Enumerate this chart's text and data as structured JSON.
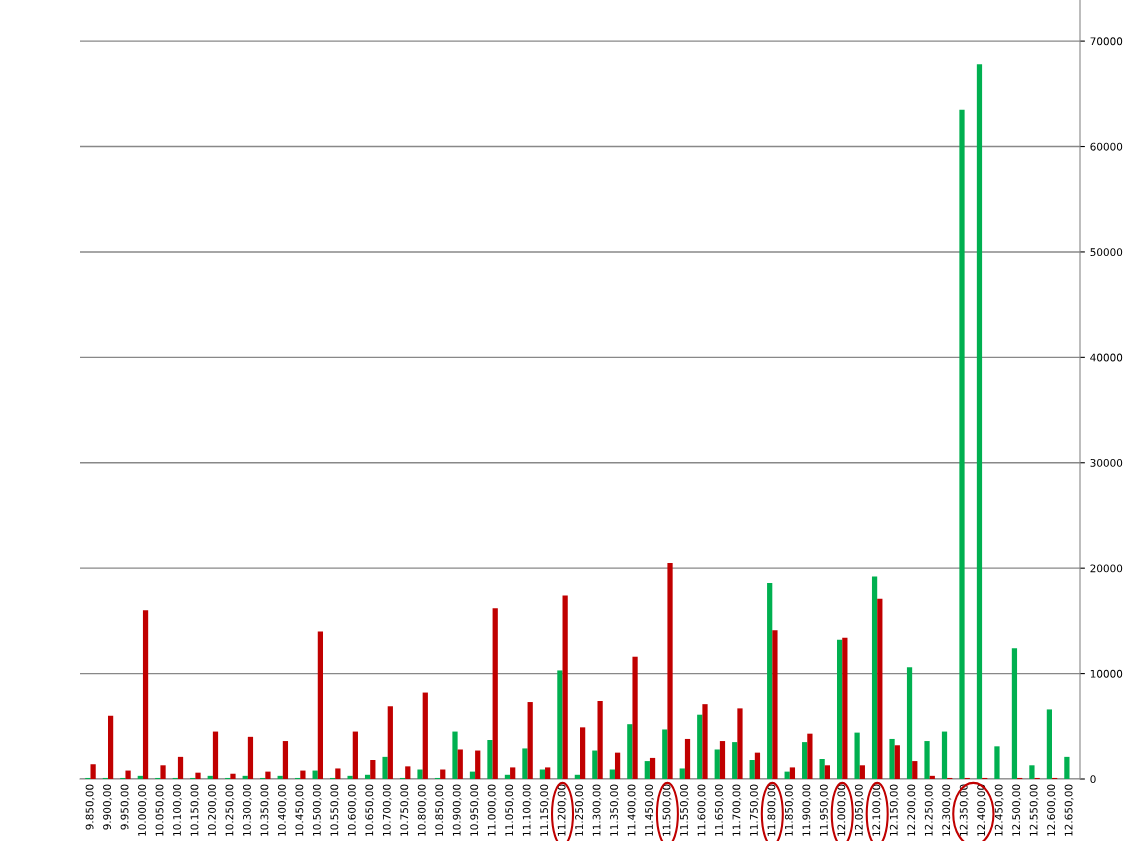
{
  "chart_data": {
    "type": "bar",
    "categories": [
      "9.850,00",
      "9.900,00",
      "9.950,00",
      "10.000,00",
      "10.050,00",
      "10.100,00",
      "10.150,00",
      "10.200,00",
      "10.250,00",
      "10.300,00",
      "10.350,00",
      "10.400,00",
      "10.450,00",
      "10.500,00",
      "10.550,00",
      "10.600,00",
      "10.650,00",
      "10.700,00",
      "10.750,00",
      "10.800,00",
      "10.850,00",
      "10.900,00",
      "10.950,00",
      "11.000,00",
      "11.050,00",
      "11.100,00",
      "11.150,00",
      "11.200,00",
      "11.250,00",
      "11.300,00",
      "11.350,00",
      "11.400,00",
      "11.450,00",
      "11.500,00",
      "11.550,00",
      "11.600,00",
      "11.650,00",
      "11.700,00",
      "11.750,00",
      "11.800,00",
      "11.850,00",
      "11.900,00",
      "11.950,00",
      "12.000,00",
      "12.050,00",
      "12.100,00",
      "12.150,00",
      "12.200,00",
      "12.250,00",
      "12.300,00",
      "12.350,00",
      "12.400,00",
      "12.450,00",
      "12.500,00",
      "12.550,00",
      "12.600,00",
      "12.650,00"
    ],
    "series": [
      {
        "color": "#00b050",
        "values": [
          100,
          100,
          100,
          300,
          100,
          100,
          100,
          300,
          100,
          300,
          100,
          300,
          100,
          800,
          100,
          300,
          400,
          2100,
          100,
          900,
          100,
          4500,
          700,
          3700,
          400,
          2900,
          900,
          10300,
          400,
          2700,
          900,
          5200,
          1700,
          4700,
          1000,
          6100,
          2800,
          3500,
          1800,
          18600,
          700,
          3500,
          1900,
          13200,
          4400,
          19200,
          3800,
          10600,
          3600,
          4500,
          63500,
          67800,
          3100,
          12400,
          1300,
          6600,
          2100
        ]
      },
      {
        "color": "#c00000",
        "values": [
          1400,
          6000,
          800,
          16000,
          1300,
          2100,
          600,
          4500,
          500,
          4000,
          700,
          3600,
          800,
          14000,
          1000,
          4500,
          1800,
          6900,
          1200,
          8200,
          900,
          2800,
          2700,
          16200,
          1100,
          7300,
          1100,
          17400,
          4900,
          7400,
          2500,
          11600,
          2000,
          20500,
          3800,
          7100,
          3600,
          6700,
          2500,
          14100,
          1100,
          4300,
          1300,
          13400,
          1300,
          17100,
          3200,
          1700,
          300,
          100,
          100,
          100,
          0,
          100,
          100,
          100,
          0
        ]
      }
    ],
    "ylim": [
      0,
      73900
    ],
    "yticks": [
      0,
      10000,
      20000,
      30000,
      40000,
      50000,
      60000,
      70000
    ],
    "grid": "y",
    "legend": false
  }
}
